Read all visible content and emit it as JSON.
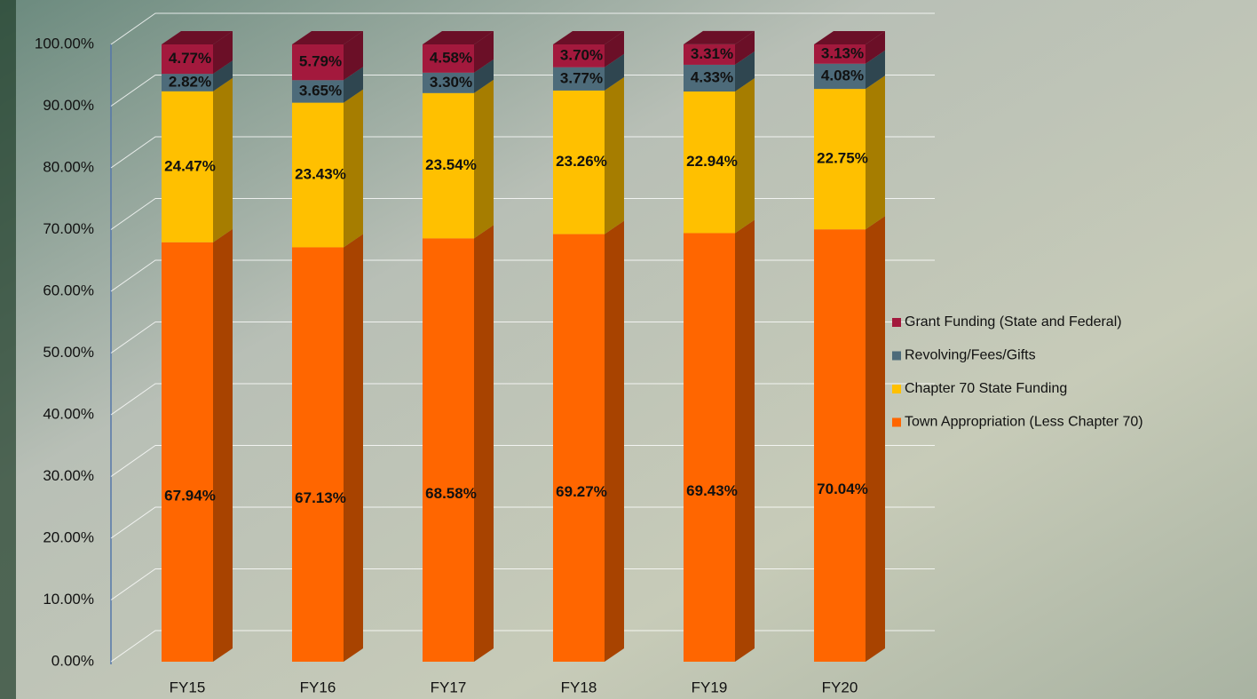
{
  "chart_data": {
    "type": "bar3d_stacked",
    "categories": [
      "FY15",
      "FY16",
      "FY17",
      "FY18",
      "FY19",
      "FY20"
    ],
    "series": [
      {
        "name": "Town Appropriation (Less Chapter 70)",
        "color": "#ff6600",
        "side": "#a84300",
        "values": [
          67.94,
          67.13,
          68.58,
          69.27,
          69.43,
          70.04
        ],
        "value_labels": [
          "67.94%",
          "67.13%",
          "68.58%",
          "69.27%",
          "69.43%",
          "70.04%"
        ]
      },
      {
        "name": "Chapter 70 State Funding",
        "color": "#ffc000",
        "side": "#a67d00",
        "values": [
          24.47,
          23.43,
          23.54,
          23.26,
          22.94,
          22.75
        ],
        "value_labels": [
          "24.47%",
          "23.43%",
          "23.54%",
          "23.26%",
          "22.94%",
          "22.75%"
        ]
      },
      {
        "name": "Revolving/Fees/Gifts",
        "color": "#4d6b7a",
        "side": "#2f4650",
        "values": [
          2.82,
          3.65,
          3.3,
          3.77,
          4.33,
          4.08
        ],
        "value_labels": [
          "2.82%",
          "3.65%",
          "3.30%",
          "3.77%",
          "4.33%",
          "4.08%"
        ]
      },
      {
        "name": "Grant Funding (State and Federal)",
        "color": "#a3193d",
        "side": "#6b0f27",
        "values": [
          4.77,
          5.79,
          4.58,
          3.7,
          3.31,
          3.13
        ],
        "value_labels": [
          "4.77%",
          "5.79%",
          "4.58%",
          "3.70%",
          "3.31%",
          "3.13%"
        ]
      }
    ],
    "ylim": [
      0,
      100
    ],
    "yticks": [
      {
        "value": 0,
        "label": "0.00%"
      },
      {
        "value": 10,
        "label": "10.00%"
      },
      {
        "value": 20,
        "label": "20.00%"
      },
      {
        "value": 30,
        "label": "30.00%"
      },
      {
        "value": 40,
        "label": "40.00%"
      },
      {
        "value": 50,
        "label": "50.00%"
      },
      {
        "value": 60,
        "label": "60.00%"
      },
      {
        "value": 70,
        "label": "70.00%"
      },
      {
        "value": 80,
        "label": "80.00%"
      },
      {
        "value": 90,
        "label": "90.00%"
      },
      {
        "value": 100,
        "label": "100.00%"
      }
    ],
    "grid": true,
    "legend": "right"
  }
}
